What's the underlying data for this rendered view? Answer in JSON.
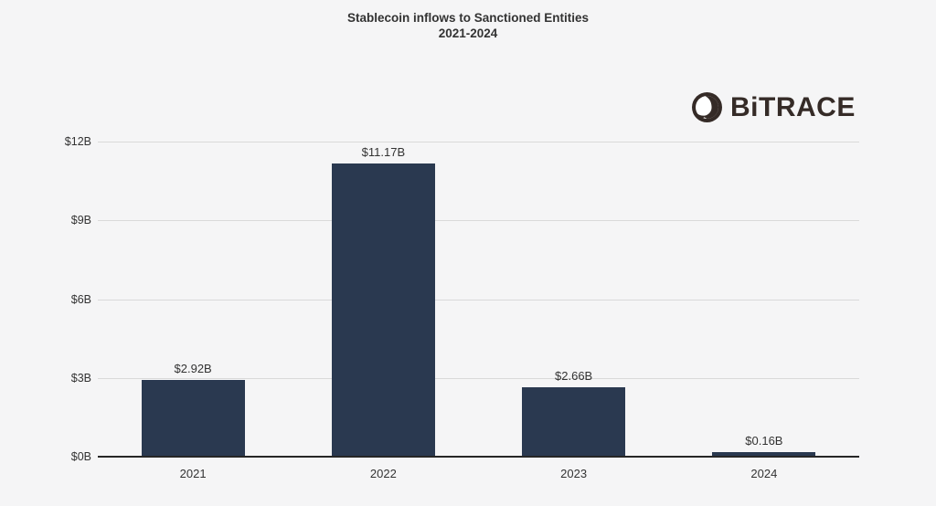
{
  "page": {
    "background_color": "#f5f5f6"
  },
  "header": {
    "title_line1": "Stablecoin inflows to Sanctioned Entities",
    "title_line2": "2021-2024"
  },
  "brand": {
    "name": "BiTRACE",
    "icon": "bitrace-logo-icon",
    "color": "#352b27"
  },
  "chart_data": {
    "type": "bar",
    "title": "Stablecoin inflows to Sanctioned Entities 2021-2024",
    "categories": [
      "2021",
      "2022",
      "2023",
      "2024"
    ],
    "values": [
      2.92,
      11.17,
      2.66,
      0.16
    ],
    "value_labels": [
      "$2.92B",
      "$11.17B",
      "$2.66B",
      "$0.16B"
    ],
    "unit": "billions USD",
    "xlabel": "",
    "ylabel": "",
    "ylim": [
      0,
      12
    ],
    "yticks": [
      0,
      3,
      6,
      9,
      12
    ],
    "ytick_labels": [
      "$0B",
      "$3B",
      "$6B",
      "$9B",
      "$12B"
    ],
    "grid": "horizontal",
    "legend": "none",
    "bar_color": "#2a3950",
    "gridline_color": "#d9d9d9",
    "axis_line_color": "#262626",
    "label_color": "#333333"
  }
}
